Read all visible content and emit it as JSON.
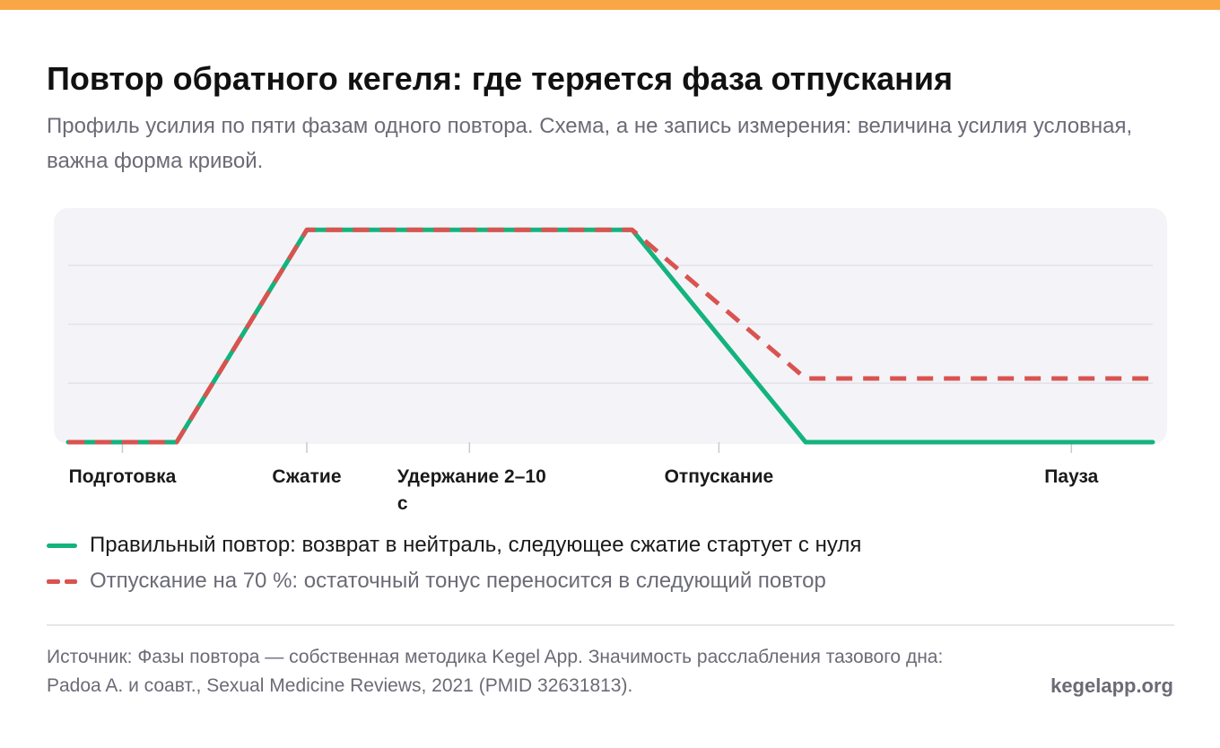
{
  "colors": {
    "accent": "#f9a745",
    "correct": "#14b37d",
    "incomplete": "#d9534f",
    "plot_background": "#f4f4f8",
    "grid": "#e1e1e8"
  },
  "header": {
    "title": "Повтор обратного кегеля: где теряется фаза отпускания",
    "subtitle": "Профиль усилия по пяти фазам одного повтора. Схема, а не запись измерения: величина усилия условная, важна форма кривой."
  },
  "legend": {
    "correct_label": "Правильный повтор: возврат в нейтраль, следующее сжатие стартует с нуля",
    "incomplete_label": "Отпускание на 70 %: остаточный тонус переносится в следующий повтор"
  },
  "footer": {
    "source": "Источник: Фазы повтора — собственная методика Kegel App. Значимость расслабления тазового дна: Padoa A. и соавт., Sexual Medicine Reviews, 2021 (PMID 32631813).",
    "brand": "kegelapp.org"
  },
  "chart_data": {
    "type": "line",
    "title": "Повтор обратного кегеля: где теряется фаза отпускания",
    "xlabel": "",
    "ylabel": "",
    "xlim": [
      0,
      10
    ],
    "ylim": [
      0,
      1
    ],
    "grid": true,
    "y_gridlines": [
      0.25,
      0.5,
      0.75
    ],
    "legend_position": "bottom",
    "phases": [
      {
        "label": "Подготовка",
        "x": 0.5
      },
      {
        "label": "Сжатие",
        "x": 2.2
      },
      {
        "label": "Удержание 2–10 с",
        "x": 3.7
      },
      {
        "label": "Отпускание",
        "x": 6.0
      },
      {
        "label": "Пауза",
        "x": 9.25
      }
    ],
    "series": [
      {
        "name": "Правильный повтор: возврат в нейтраль, следующее сжатие стартует с нуля",
        "style": "solid",
        "points": [
          [
            0,
            0
          ],
          [
            1.0,
            0
          ],
          [
            2.2,
            0.9
          ],
          [
            5.2,
            0.9
          ],
          [
            6.8,
            0
          ],
          [
            10,
            0
          ]
        ]
      },
      {
        "name": "Отпускание на 70 %: остаточный тонус переносится в следующий повтор",
        "style": "dashed",
        "points": [
          [
            0,
            0
          ],
          [
            1.0,
            0
          ],
          [
            2.2,
            0.9
          ],
          [
            5.2,
            0.9
          ],
          [
            6.8,
            0.27
          ],
          [
            10,
            0.27
          ]
        ]
      }
    ]
  }
}
